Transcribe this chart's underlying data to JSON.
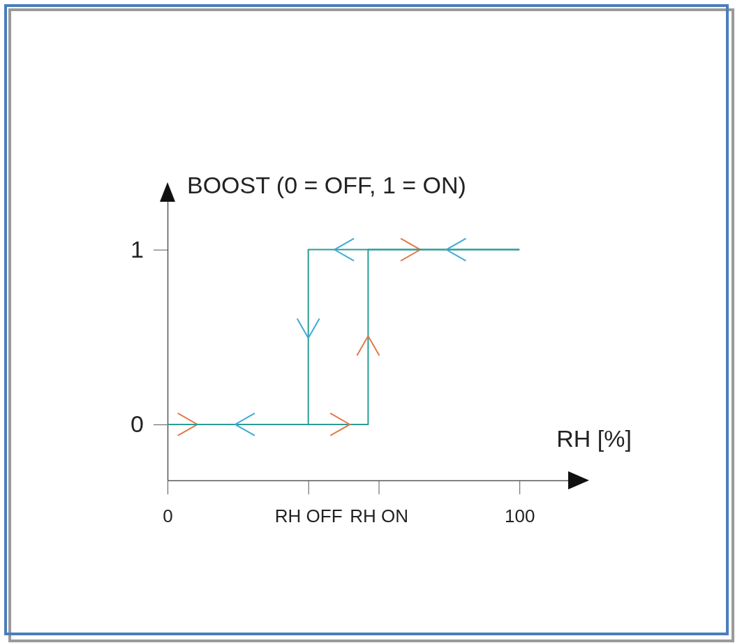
{
  "chart_data": {
    "type": "line",
    "xlabel": "RH [%]",
    "ylabel": "BOOST (0 = OFF, 1 = ON)",
    "xlim": [
      0,
      119
    ],
    "ylim": [
      -0.32,
      1.37
    ],
    "xticks": [
      0,
      {
        "value": 40,
        "label": "RH OFF"
      },
      {
        "value": 60,
        "label": "RH ON"
      },
      100
    ],
    "yticks": [
      0,
      1
    ],
    "series": [
      {
        "color": "#2a9d96",
        "x": [
          0,
          57,
          57,
          100
        ],
        "values": [
          0,
          0,
          1,
          1
        ]
      },
      {
        "color": "#2a9d96",
        "x": [
          100,
          40,
          40,
          0
        ],
        "values": [
          1,
          1,
          0,
          0
        ]
      }
    ],
    "grid": false,
    "marker": "none",
    "line_style": "solid"
  }
}
